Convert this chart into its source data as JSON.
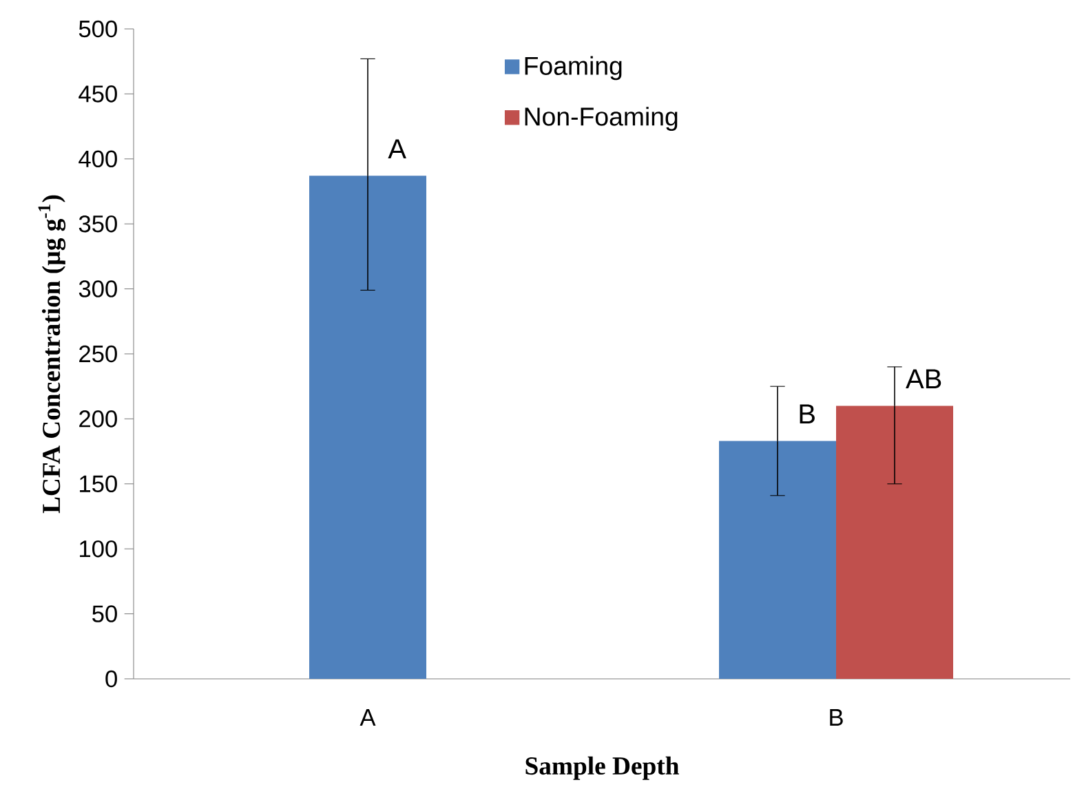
{
  "chart_data": {
    "type": "bar",
    "xlabel": "Sample Depth",
    "ylabel": "LCFA Concentration (µg g$^{-1}$)",
    "categories": [
      "A",
      "B"
    ],
    "series": [
      {
        "name": "Foaming",
        "color": "#4f81bd",
        "values": [
          387,
          183
        ],
        "errors": [
          [
            299,
            477
          ],
          [
            141,
            225
          ]
        ]
      },
      {
        "name": "Non-Foaming",
        "color": "#c0504d",
        "values": [
          null,
          210
        ],
        "errors": [
          null,
          [
            150,
            240
          ]
        ]
      }
    ],
    "ylim": [
      0,
      500
    ],
    "yticks": [
      0,
      50,
      100,
      150,
      200,
      250,
      300,
      350,
      400,
      450,
      500
    ],
    "annotations": [
      {
        "text": "A",
        "x": "A",
        "y": 387
      },
      {
        "text": "B",
        "x": "B",
        "y": 183
      },
      {
        "text": "AB",
        "x": "B",
        "y": 210
      }
    ],
    "legend": "top",
    "grid": false
  }
}
